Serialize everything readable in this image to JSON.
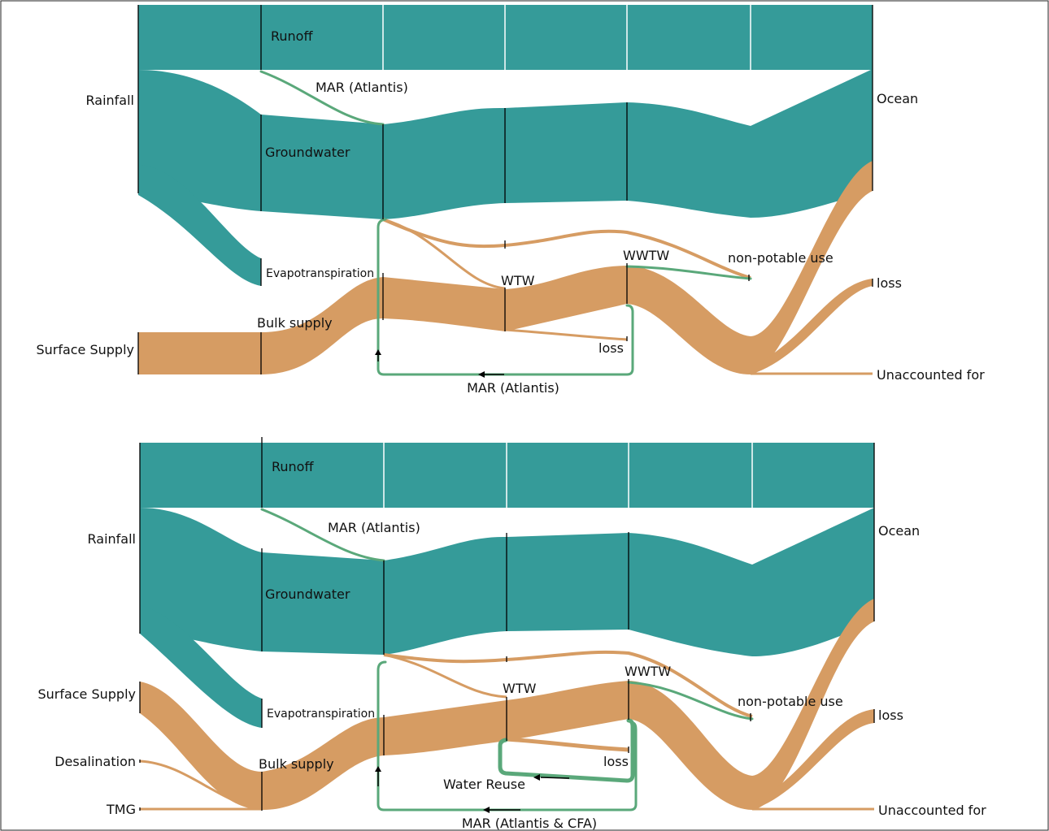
{
  "panels": [
    {
      "id": "top",
      "labels": {
        "rainfall": "Rainfall",
        "surface_supply": "Surface Supply",
        "runoff": "Runoff",
        "mar_atlantis_recharge": "MAR (Atlantis)",
        "groundwater": "Groundwater",
        "evapotranspiration": "Evapotranspiration",
        "bulk_supply": "Bulk supply",
        "wtw": "WTW",
        "wwtw": "WWTW",
        "non_potable_use": "non-potable use",
        "loss_wtw": "loss",
        "mar_return": "MAR (Atlantis)",
        "ocean": "Ocean",
        "loss": "loss",
        "unaccounted_for": "Unaccounted for"
      }
    },
    {
      "id": "bottom",
      "labels": {
        "rainfall": "Rainfall",
        "surface_supply": "Surface Supply",
        "desalination": "Desalination",
        "tmg": "TMG",
        "runoff": "Runoff",
        "mar_atlantis_recharge": "MAR (Atlantis)",
        "groundwater": "Groundwater",
        "evapotranspiration": "Evapotranspiration",
        "bulk_supply": "Bulk supply",
        "wtw": "WTW",
        "wwtw": "WWTW",
        "non_potable_use": "non-potable use",
        "loss_wtw": "loss",
        "water_reuse": "Water Reuse",
        "mar_return": "MAR (Atlantis & CFA)",
        "ocean": "Ocean",
        "loss": "loss",
        "unaccounted_for": "Unaccounted for"
      }
    }
  ],
  "colors": {
    "groundwater_flow": "#359b99",
    "supply_flow": "#d69c63",
    "recharge_flow": "#5aa87a"
  }
}
